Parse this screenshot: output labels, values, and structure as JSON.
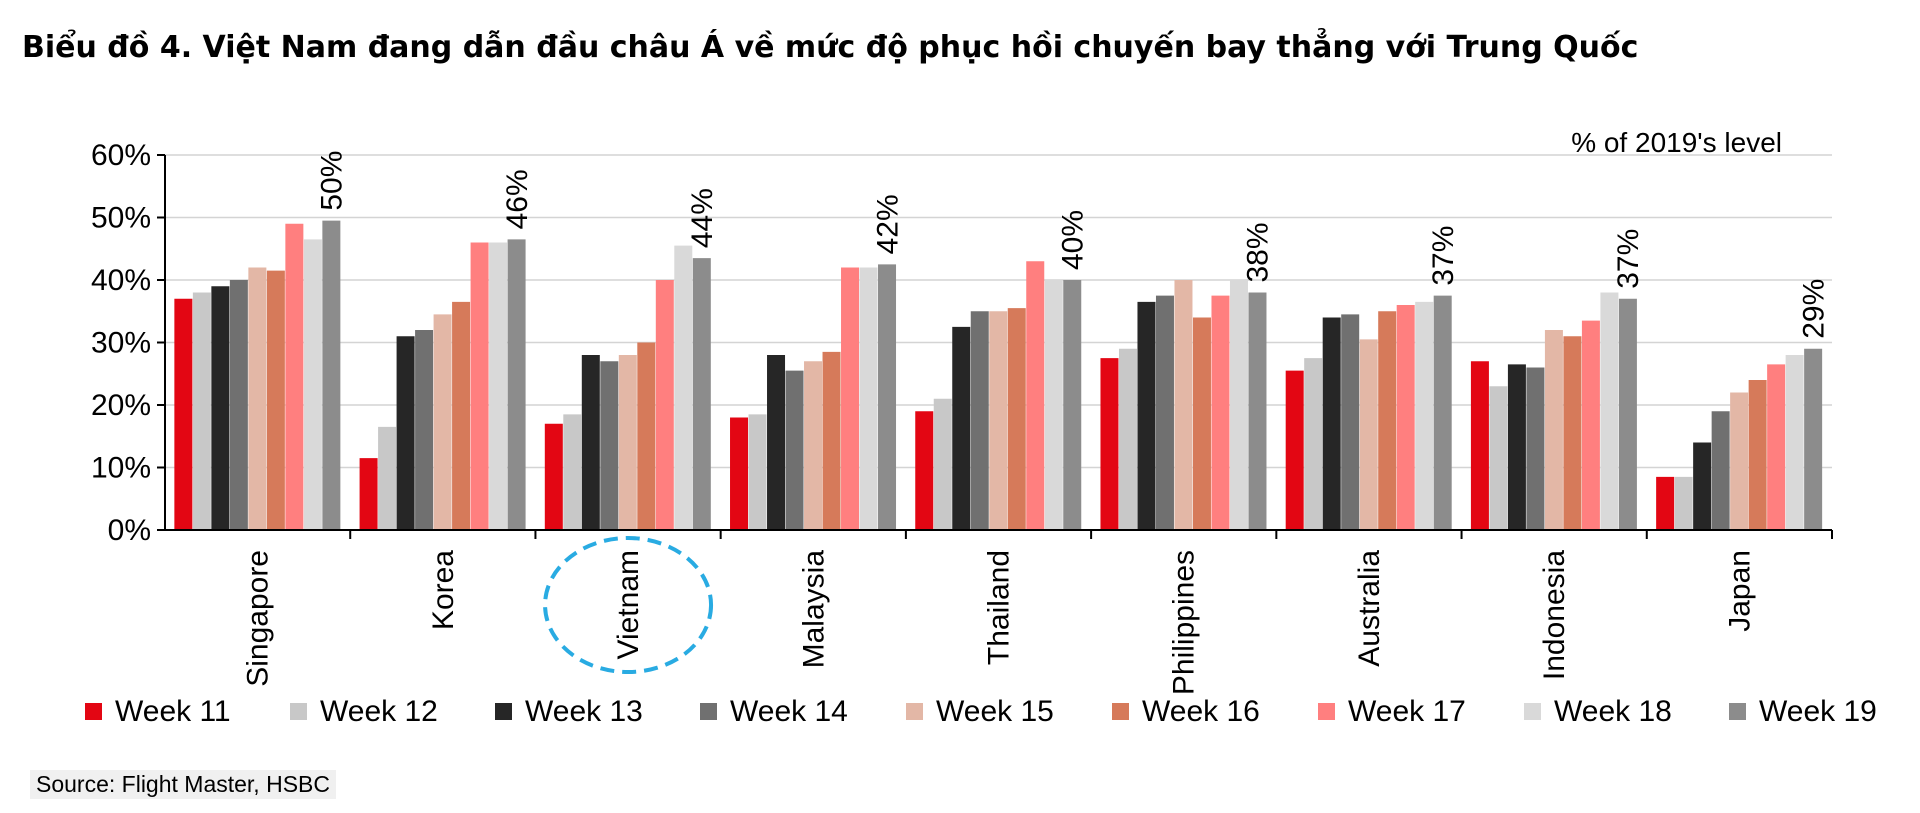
{
  "title": "Biểu đồ 4. Việt Nam đang dẫn đầu châu Á về mức độ phục hồi chuyến bay thẳng với Trung Quốc",
  "source": "Source: Flight Master, HSBC",
  "colors": [
    "#e30613",
    "#c8c8c8",
    "#262626",
    "#707070",
    "#e3b7a6",
    "#d67a5a",
    "#ff7f7f",
    "#d9d9d9",
    "#8c8c8c"
  ],
  "highlight_color": "#29abe2",
  "chart_data": {
    "type": "bar",
    "unit_label": "% of 2019's level",
    "categories": [
      "Singapore",
      "Korea",
      "Vietnam",
      "Malaysia",
      "Thailand",
      "Philippines",
      "Australia",
      "Indonesia",
      "Japan"
    ],
    "highlighted_category": "Vietnam",
    "ylim": [
      0,
      60
    ],
    "yticks": [
      "0%",
      "10%",
      "20%",
      "30%",
      "40%",
      "50%",
      "60%"
    ],
    "grid": true,
    "legend_position": "bottom",
    "series": [
      {
        "name": "Week 11",
        "values": [
          37,
          11.5,
          17,
          18,
          19,
          27.5,
          25.5,
          27,
          8.5
        ]
      },
      {
        "name": "Week 12",
        "values": [
          38,
          16.5,
          18.5,
          18.5,
          21,
          29,
          27.5,
          23,
          8.5
        ]
      },
      {
        "name": "Week 13",
        "values": [
          39,
          31,
          28,
          28,
          32.5,
          36.5,
          34,
          26.5,
          14
        ]
      },
      {
        "name": "Week 14",
        "values": [
          40,
          32,
          27,
          25.5,
          35,
          37.5,
          34.5,
          26,
          19
        ]
      },
      {
        "name": "Week 15",
        "values": [
          42,
          34.5,
          28,
          27,
          35,
          40,
          30.5,
          32,
          22
        ]
      },
      {
        "name": "Week 16",
        "values": [
          41.5,
          36.5,
          30,
          28.5,
          35.5,
          34,
          35,
          31,
          24
        ]
      },
      {
        "name": "Week 17",
        "values": [
          49,
          46,
          40,
          42,
          43,
          37.5,
          36,
          33.5,
          26.5
        ]
      },
      {
        "name": "Week 18",
        "values": [
          46.5,
          46,
          45.5,
          42,
          40,
          40,
          36.5,
          38,
          28
        ]
      },
      {
        "name": "Week 19",
        "values": [
          49.5,
          46.5,
          43.5,
          42.5,
          40,
          38,
          37.5,
          37,
          29
        ]
      }
    ],
    "data_labels": [
      "50%",
      "46%",
      "44%",
      "42%",
      "40%",
      "38%",
      "37%",
      "37%",
      "29%"
    ]
  }
}
